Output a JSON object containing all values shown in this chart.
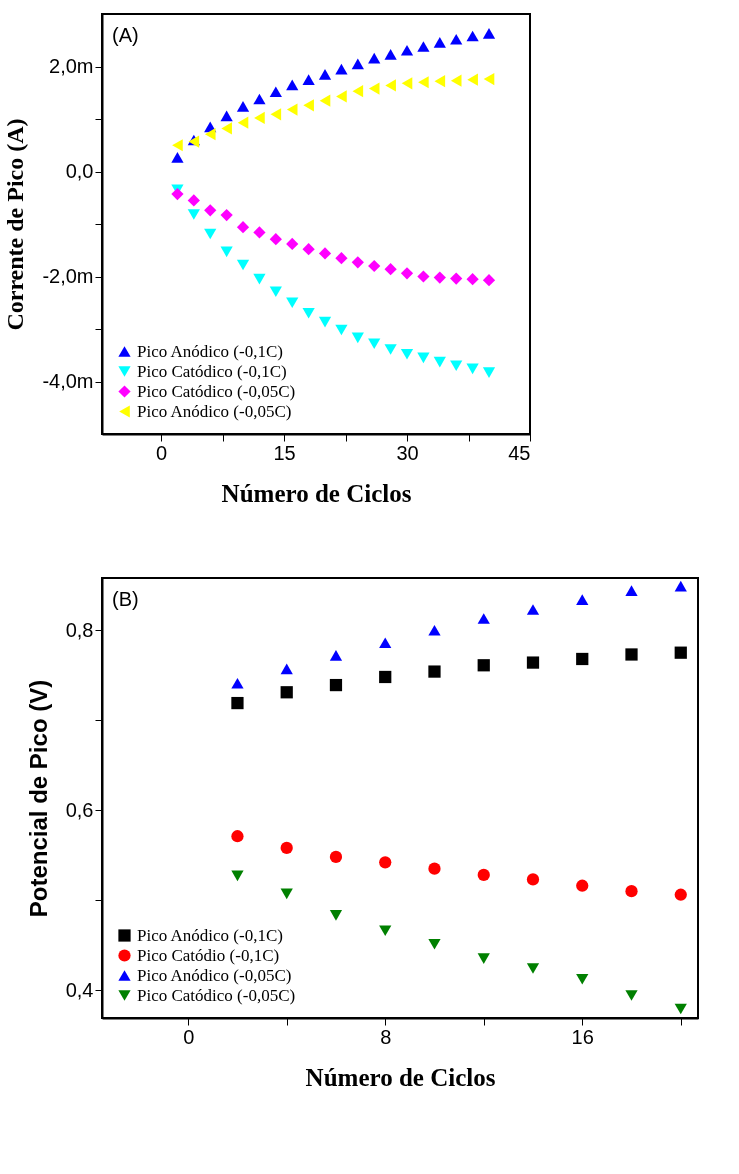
{
  "chart_data": [
    {
      "type": "scatter",
      "xlabel": "Número de Ciclos",
      "ylabel": "Corrente de Pico (A)",
      "annotations": [
        "(A)"
      ],
      "x": [
        2,
        4,
        6,
        8,
        10,
        12,
        14,
        16,
        18,
        20,
        22,
        24,
        26,
        28,
        30,
        32,
        34,
        36,
        38,
        40
      ],
      "xlim": [
        -7.2,
        45
      ],
      "xticks": [
        0,
        {
          "value": 7.5,
          "label": null
        },
        15,
        {
          "value": 22.5,
          "label": null
        },
        30,
        {
          "value": 37.5,
          "label": null
        },
        45
      ],
      "ylim": [
        -5,
        3
      ],
      "yticks": [
        {
          "value": 2,
          "label": "2,0m"
        },
        {
          "value": 1,
          "label": null
        },
        {
          "value": 0,
          "label": "0,0"
        },
        {
          "value": -1,
          "label": null
        },
        {
          "value": -2,
          "label": "-2,0m"
        },
        {
          "value": -3,
          "label": null
        },
        {
          "value": -4,
          "label": "-4,0m"
        }
      ],
      "grid": false,
      "legend": "bottom left",
      "series": [
        {
          "name": "Pico Anódico (-0,1C)",
          "color": "#0000ff",
          "marker": "triangle",
          "values": [
            0.27,
            0.6,
            0.85,
            1.06,
            1.24,
            1.38,
            1.52,
            1.65,
            1.75,
            1.85,
            1.95,
            2.05,
            2.16,
            2.23,
            2.31,
            2.38,
            2.46,
            2.52,
            2.58,
            2.63
          ]
        },
        {
          "name": "Pico Catódico (-0,1C)",
          "color": "#00ffff",
          "marker": "triangle-down",
          "values": [
            -0.35,
            -0.82,
            -1.19,
            -1.53,
            -1.78,
            -2.05,
            -2.29,
            -2.5,
            -2.7,
            -2.87,
            -3.02,
            -3.17,
            -3.28,
            -3.39,
            -3.48,
            -3.55,
            -3.63,
            -3.7,
            -3.76,
            -3.83
          ]
        },
        {
          "name": "Pico Catódico (-0,05C)",
          "color": "#ff00ff",
          "marker": "diamond",
          "values": [
            -0.43,
            -0.55,
            -0.74,
            -0.83,
            -1.06,
            -1.16,
            -1.29,
            -1.38,
            -1.48,
            -1.56,
            -1.65,
            -1.73,
            -1.8,
            -1.86,
            -1.94,
            -2.0,
            -2.02,
            -2.04,
            -2.05,
            -2.07
          ]
        },
        {
          "name": "Pico Anódico (-0,05C)",
          "color": "#ffff00",
          "marker": "triangle-left",
          "values": [
            0.5,
            0.57,
            0.71,
            0.82,
            0.93,
            1.02,
            1.09,
            1.18,
            1.26,
            1.35,
            1.43,
            1.53,
            1.58,
            1.64,
            1.68,
            1.7,
            1.72,
            1.73,
            1.75,
            1.76
          ]
        }
      ]
    },
    {
      "type": "scatter",
      "xlabel": "Número de Ciclos",
      "ylabel": "Potencial de Pico (V)",
      "annotations": [
        "(B)"
      ],
      "x": [
        2,
        4,
        6,
        8,
        10,
        12,
        14,
        16,
        18,
        20
      ],
      "xlim": [
        -3.5,
        20.7
      ],
      "xticks": [
        0,
        {
          "value": 4,
          "label": null
        },
        8,
        {
          "value": 12,
          "label": null
        },
        16,
        {
          "value": 20,
          "label": null
        }
      ],
      "ylim": [
        0.369,
        0.858
      ],
      "yticks": [
        {
          "value": 0.4,
          "label": "0,4"
        },
        {
          "value": 0.5,
          "label": null
        },
        {
          "value": 0.6,
          "label": "0,6"
        },
        {
          "value": 0.7,
          "label": null
        },
        {
          "value": 0.8,
          "label": "0,8"
        }
      ],
      "grid": false,
      "legend": "bottom left",
      "series": [
        {
          "name": "Pico Anódico (-0,1C)",
          "color": "#000000",
          "marker": "square",
          "values": [
            0.719,
            0.731,
            0.739,
            0.748,
            0.754,
            0.761,
            0.764,
            0.768,
            0.773,
            0.775
          ]
        },
        {
          "name": "Pico Catódio (-0,1C)",
          "color": "#ff0000",
          "marker": "circle",
          "values": [
            0.571,
            0.558,
            0.548,
            0.542,
            0.535,
            0.528,
            0.523,
            0.516,
            0.51,
            0.506
          ]
        },
        {
          "name": "Pico Anódico (-0,05C)",
          "color": "#0000ff",
          "marker": "triangle",
          "values": [
            0.741,
            0.757,
            0.772,
            0.786,
            0.8,
            0.813,
            0.823,
            0.834,
            0.844,
            0.849
          ]
        },
        {
          "name": "Pico Catódico (-0,05C)",
          "color": "#008000",
          "marker": "triangle-down",
          "values": [
            0.527,
            0.507,
            0.483,
            0.466,
            0.451,
            0.435,
            0.424,
            0.412,
            0.394,
            0.379
          ]
        }
      ]
    }
  ]
}
